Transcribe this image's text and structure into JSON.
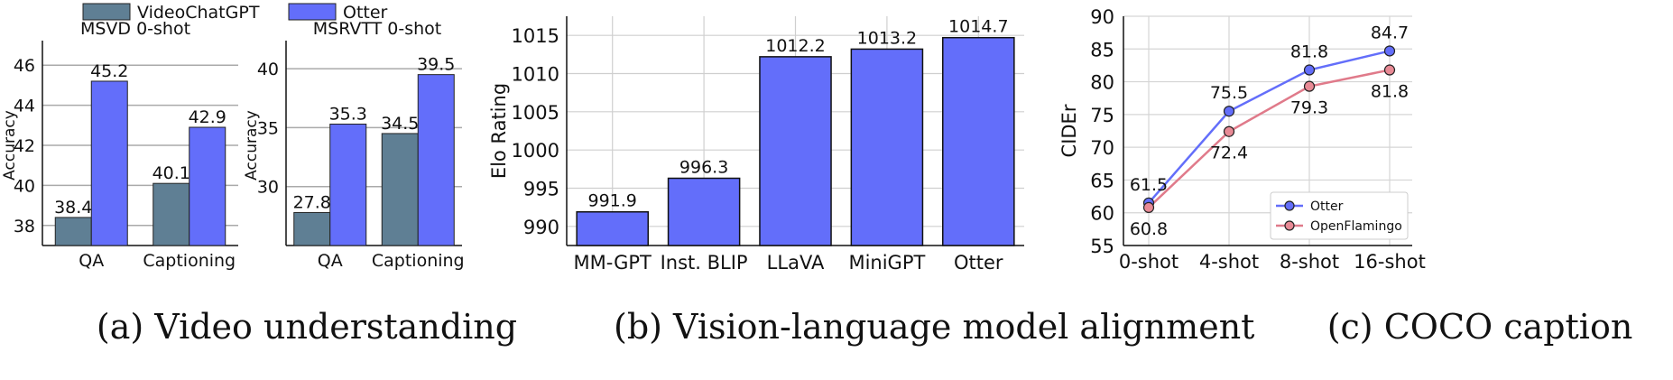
{
  "captions": {
    "a": "(a) Video understanding",
    "b": "(b) Vision-language model alignment",
    "c": "(c) COCO caption"
  },
  "colors": {
    "videochatgpt": "#5f7f94",
    "otter_bar": "#636efa",
    "otter_line": "#636efa",
    "openflamingo_line": "#e07a8a",
    "openflamingo_marker": "#e88a95",
    "grid": "#aaaaaa"
  },
  "chart_data": [
    {
      "id": "msvd",
      "type": "bar",
      "title": "MSVD 0-shot",
      "ylabel": "Accuracy",
      "categories": [
        "QA",
        "Captioning"
      ],
      "series": [
        {
          "name": "VideoChatGPT",
          "values": [
            38.4,
            40.1
          ]
        },
        {
          "name": "Otter",
          "values": [
            45.2,
            42.9
          ]
        }
      ],
      "value_labels": [
        [
          "38.4",
          "40.1"
        ],
        [
          "45.2",
          "42.9"
        ]
      ],
      "ylim": [
        37,
        47
      ],
      "yticks": [
        "38",
        "40",
        "42",
        "44",
        "46"
      ],
      "grid": "horizontal",
      "legend": "top"
    },
    {
      "id": "msrvtt",
      "type": "bar",
      "title": "MSRVTT 0-shot",
      "ylabel": "Accuracy",
      "categories": [
        "QA",
        "Captioning"
      ],
      "series": [
        {
          "name": "VideoChatGPT",
          "values": [
            27.8,
            34.5
          ]
        },
        {
          "name": "Otter",
          "values": [
            35.3,
            39.5
          ]
        }
      ],
      "value_labels": [
        [
          "27.8",
          "34.5"
        ],
        [
          "35.3",
          "39.5"
        ]
      ],
      "ylim": [
        25,
        42
      ],
      "yticks": [
        "30",
        "35",
        "40"
      ],
      "grid": "horizontal"
    },
    {
      "id": "elo",
      "type": "bar",
      "ylabel": "Elo Rating",
      "categories": [
        "MM-GPT",
        "Inst. BLIP",
        "LLaVA",
        "MiniGPT",
        "Otter"
      ],
      "values": [
        991.9,
        996.3,
        1012.2,
        1013.2,
        1014.7
      ],
      "value_labels": [
        "991.9",
        "996.3",
        "1012.2",
        "1013.2",
        "1014.7"
      ],
      "ylim": [
        987.5,
        1017.5
      ],
      "yticks": [
        "990",
        "995",
        "1000",
        "1005",
        "1010",
        "1015"
      ],
      "grid": "both"
    },
    {
      "id": "coco",
      "type": "line",
      "ylabel": "CIDEr",
      "categories": [
        "0-shot",
        "4-shot",
        "8-shot",
        "16-shot"
      ],
      "series": [
        {
          "name": "Otter",
          "values": [
            61.5,
            75.5,
            81.8,
            84.7
          ],
          "labels": [
            "61.5",
            "75.5",
            "81.8",
            "84.7"
          ]
        },
        {
          "name": "OpenFlamingo",
          "values": [
            60.8,
            72.4,
            79.3,
            81.8
          ],
          "labels": [
            "60.8",
            "72.4",
            "79.3",
            "81.8"
          ]
        }
      ],
      "ylim": [
        55,
        90
      ],
      "yticks": [
        "55",
        "60",
        "65",
        "70",
        "75",
        "80",
        "85",
        "90"
      ],
      "grid": "both",
      "legend": "bottom-right"
    }
  ]
}
